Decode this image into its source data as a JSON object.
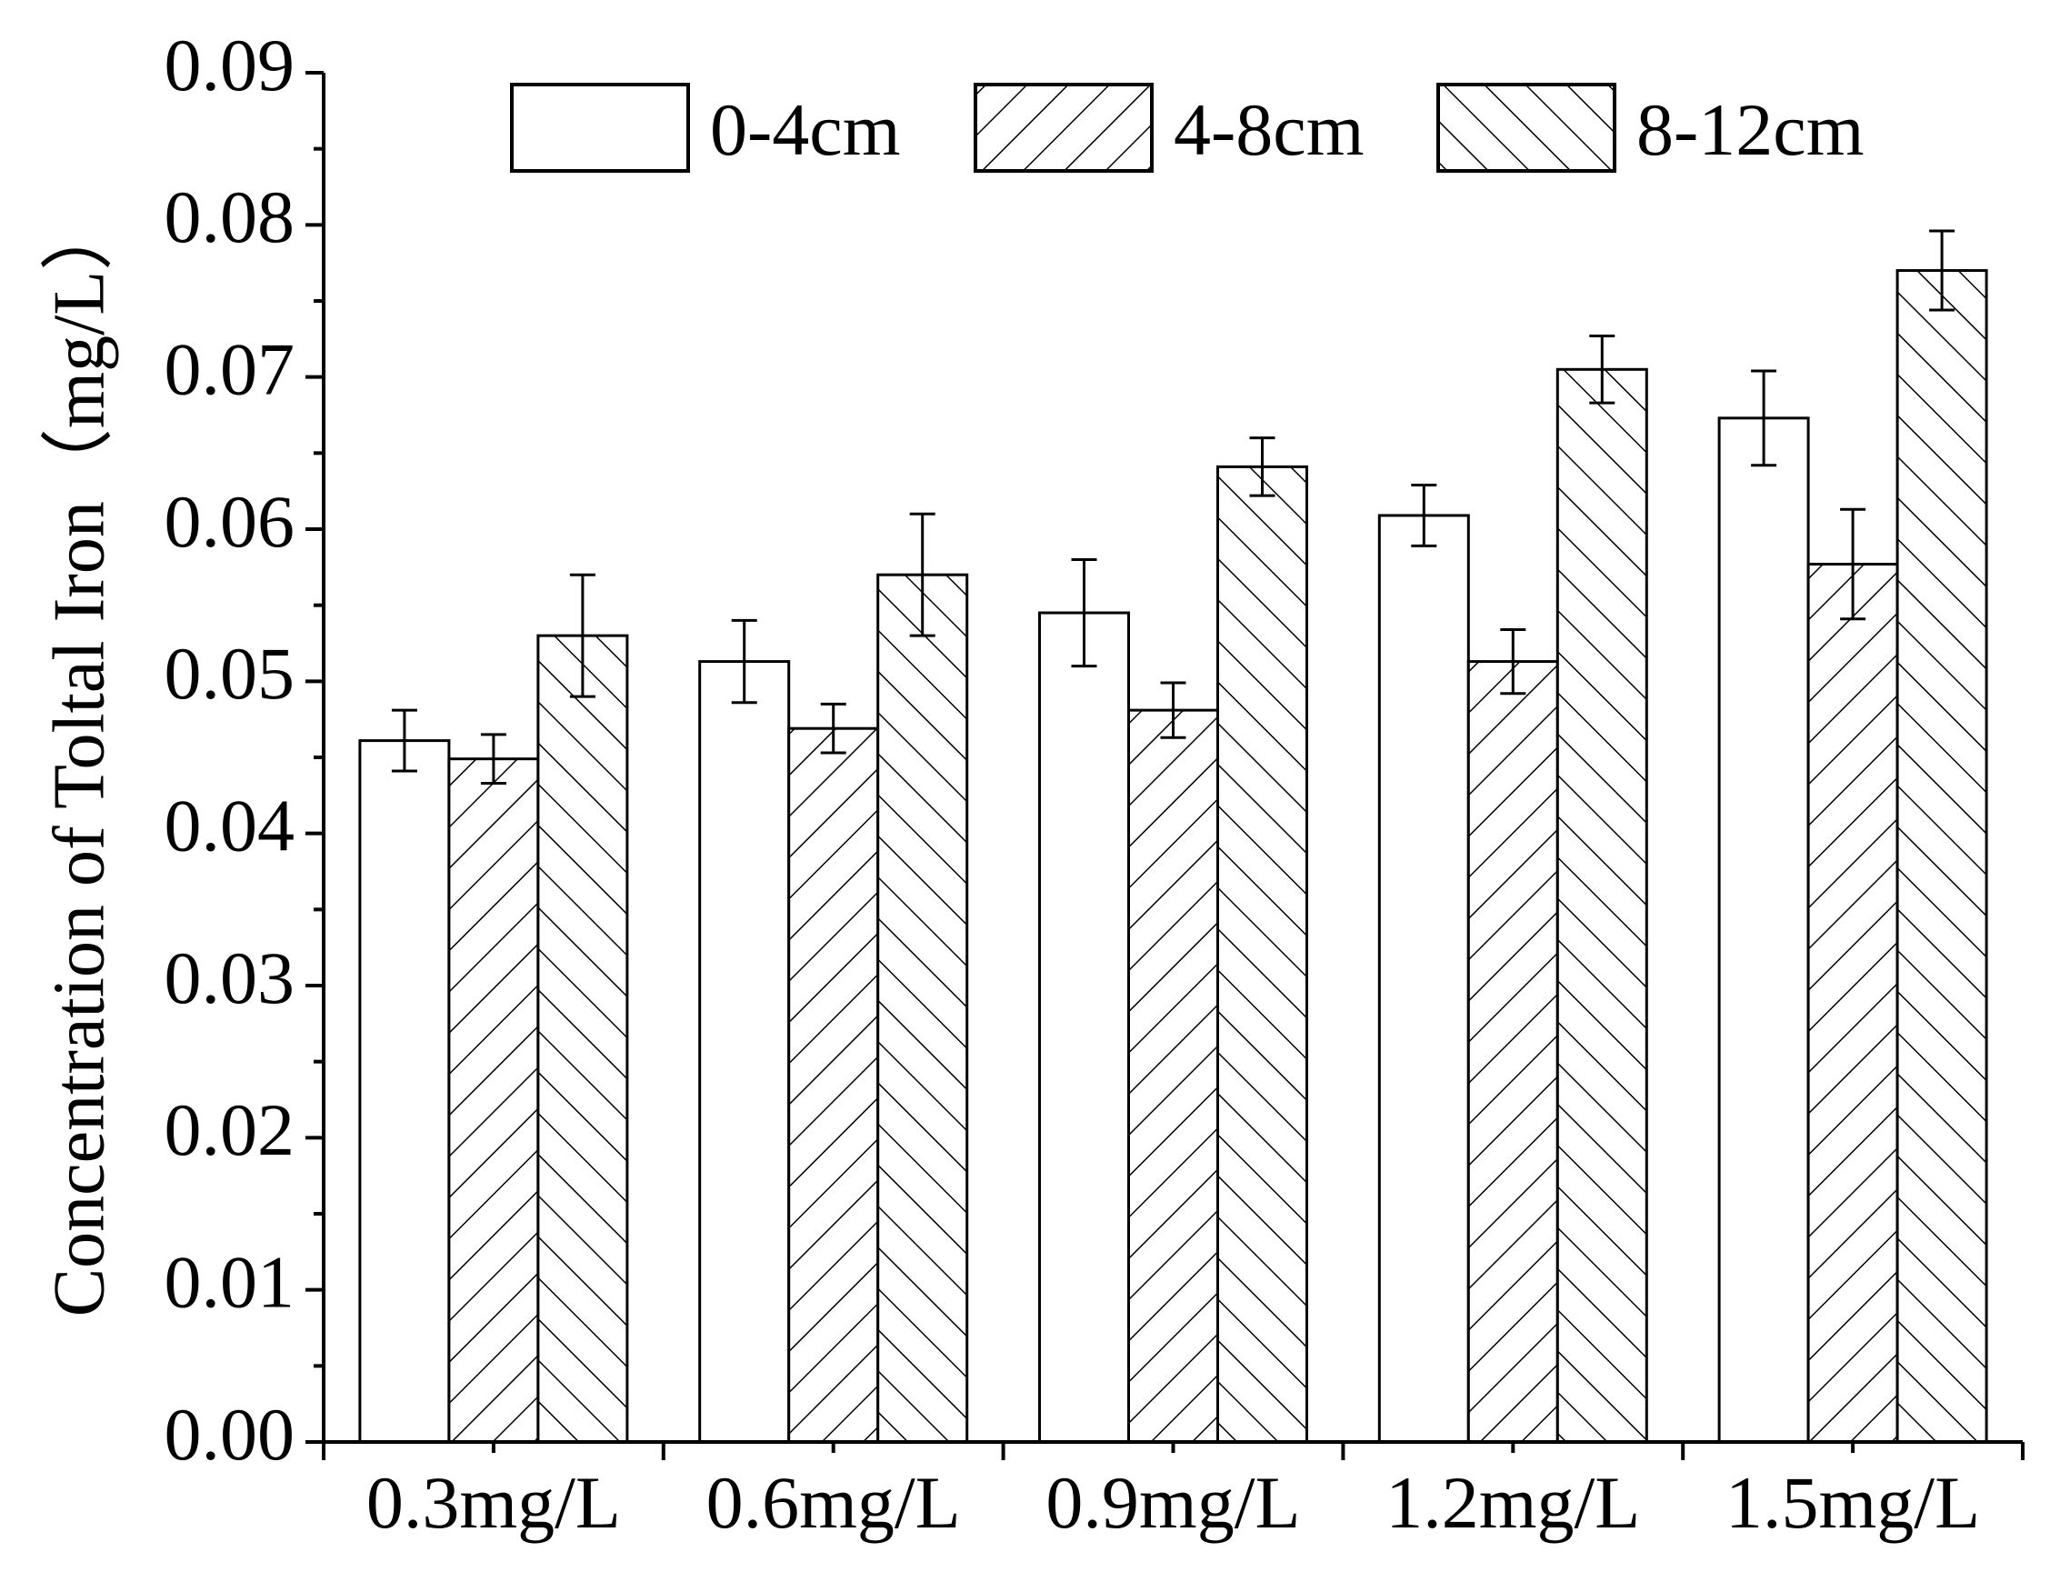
{
  "chart_data": {
    "type": "bar",
    "title": "",
    "xlabel": "",
    "ylabel": "Concentration of Toltal Iron（mg/L）",
    "ylim": [
      0,
      0.09
    ],
    "yticks": [
      "0.00",
      "0.01",
      "0.02",
      "0.03",
      "0.04",
      "0.05",
      "0.06",
      "0.07",
      "0.08",
      "0.09"
    ],
    "categories": [
      "0.3mg/L",
      "0.6mg/L",
      "0.9mg/L",
      "1.2mg/L",
      "1.5mg/L"
    ],
    "series": [
      {
        "name": "0-4cm",
        "pattern": "none",
        "values": [
          0.0461,
          0.0513,
          0.0545,
          0.0609,
          0.0673
        ],
        "errors": [
          0.002,
          0.0027,
          0.0035,
          0.002,
          0.0031
        ]
      },
      {
        "name": "4-8cm",
        "pattern": "forward-hatch",
        "values": [
          0.0449,
          0.0469,
          0.0481,
          0.0513,
          0.0577
        ],
        "errors": [
          0.0016,
          0.0016,
          0.0018,
          0.0021,
          0.0036
        ]
      },
      {
        "name": "8-12cm",
        "pattern": "backward-hatch",
        "values": [
          0.053,
          0.057,
          0.0641,
          0.0705,
          0.077
        ],
        "errors": [
          0.004,
          0.004,
          0.0019,
          0.0022,
          0.0026
        ]
      }
    ],
    "legend_position": "top",
    "colors": {
      "stroke": "#000000",
      "fill": "#ffffff"
    }
  }
}
